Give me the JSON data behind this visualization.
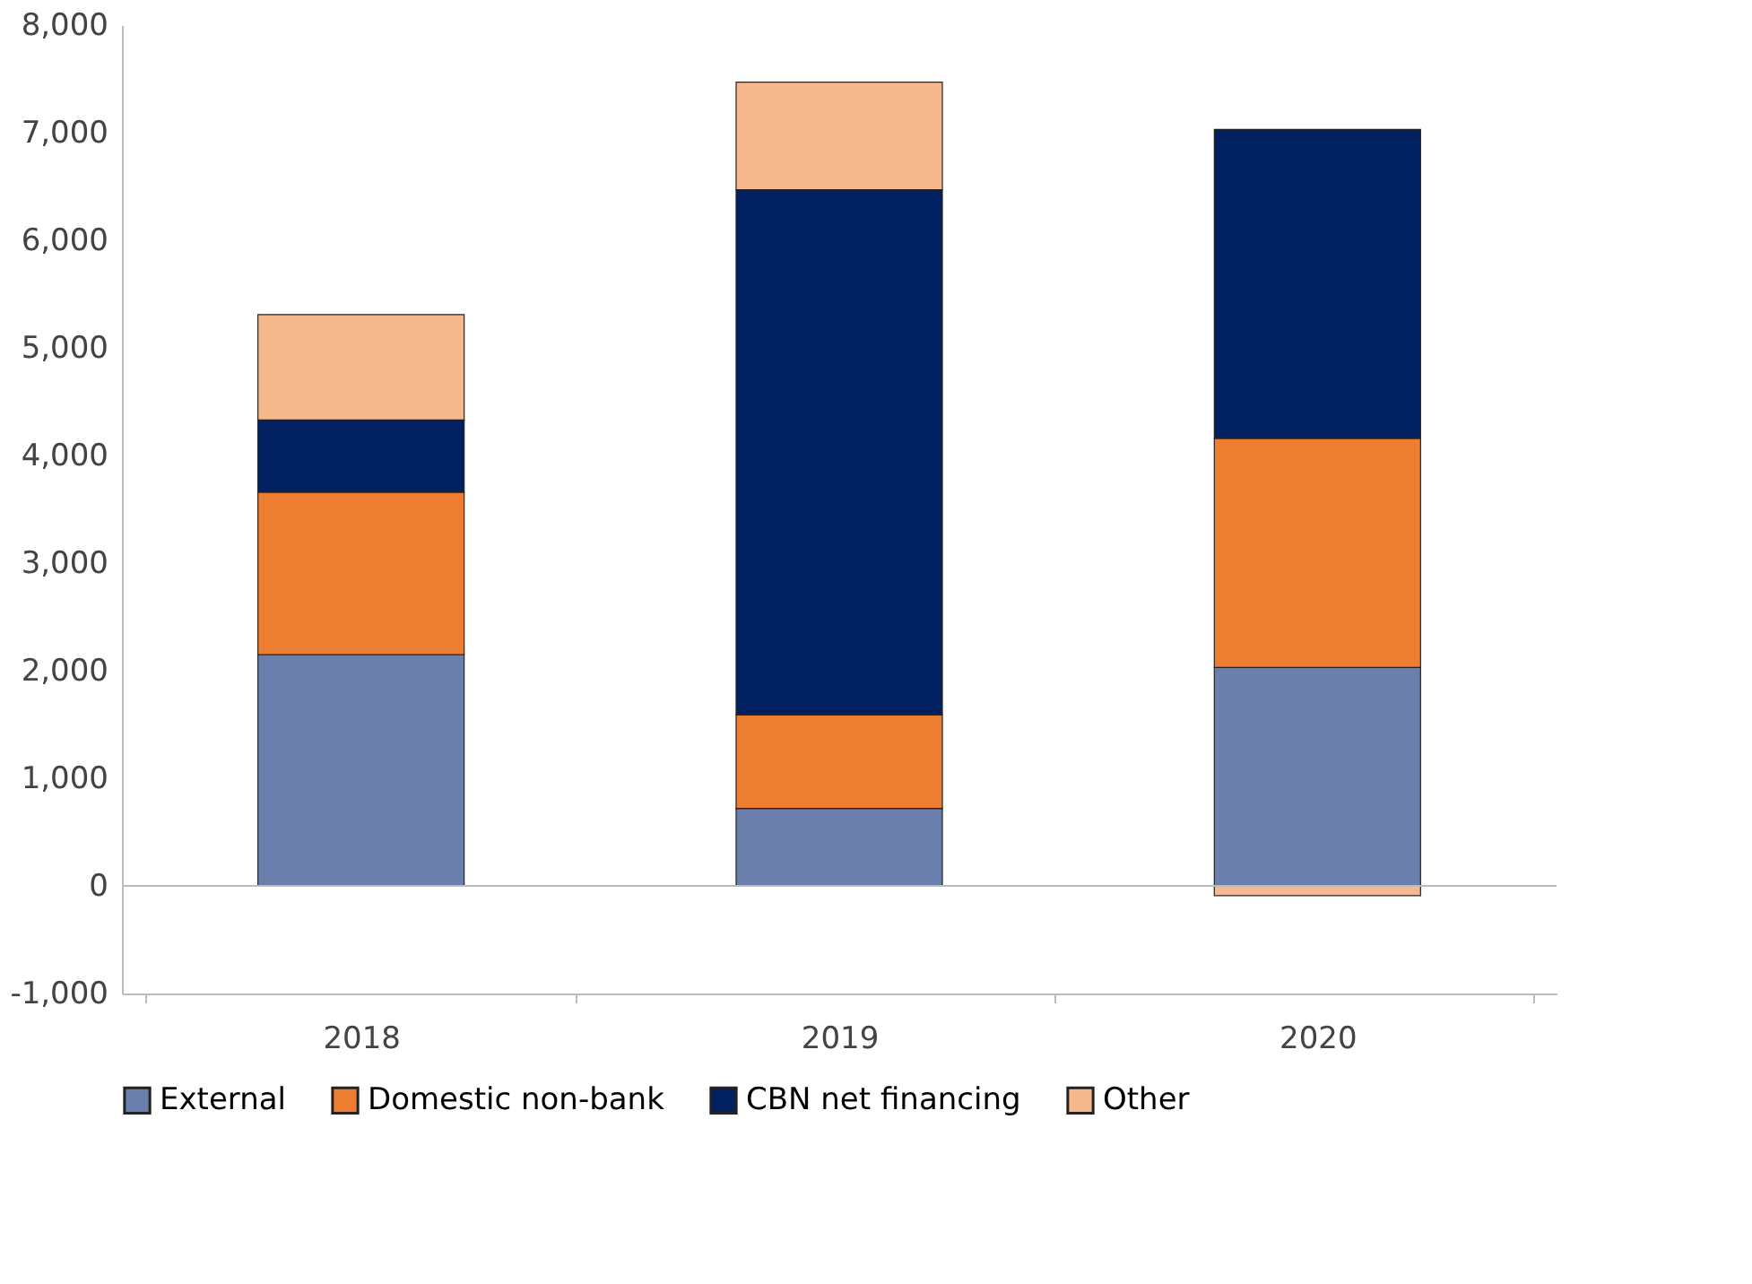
{
  "chart_data": {
    "type": "bar",
    "stacked": true,
    "categories": [
      "2018",
      "2019",
      "2020"
    ],
    "series": [
      {
        "name": "External",
        "color": "#6a7fab",
        "values": [
          2150,
          720,
          2030
        ]
      },
      {
        "name": "Domestic non-bank",
        "color": "#ed7d31",
        "values": [
          1510,
          870,
          2130
        ]
      },
      {
        "name": "CBN net financing",
        "color": "#002060",
        "values": [
          670,
          4880,
          2870
        ]
      },
      {
        "name": "Other",
        "color": "#f6b98d",
        "values": [
          980,
          1000,
          -90
        ]
      }
    ],
    "ylim": [
      -1000,
      8000
    ],
    "yticks": [
      {
        "value": -1000,
        "label": "-1,000"
      },
      {
        "value": 0,
        "label": "0"
      },
      {
        "value": 1000,
        "label": "1,000"
      },
      {
        "value": 2000,
        "label": "2,000"
      },
      {
        "value": 3000,
        "label": "3,000"
      },
      {
        "value": 4000,
        "label": "4,000"
      },
      {
        "value": 5000,
        "label": "5,000"
      },
      {
        "value": 6000,
        "label": "6,000"
      },
      {
        "value": 7000,
        "label": "7,000"
      },
      {
        "value": 8000,
        "label": "8,000"
      }
    ],
    "ref_lines": [
      {
        "axis": "y",
        "value": 0,
        "color": "#bbbbbb"
      }
    ],
    "grid": false,
    "legend": "bottom"
  }
}
